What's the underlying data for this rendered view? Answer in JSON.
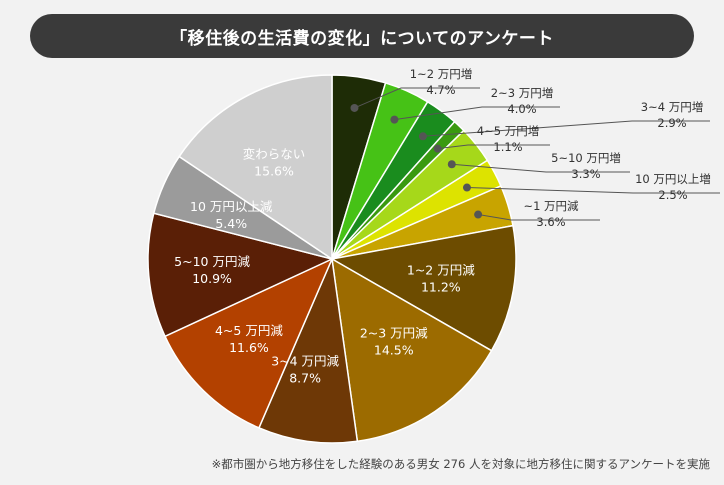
{
  "chart_data": {
    "type": "pie",
    "title": "「移住後の生活費の変化」についてのアンケート",
    "footnote": "※都市圏から地方移住をした経験のある男女 276 人を対象に地方移住に関するアンケートを実施",
    "slices": [
      {
        "label": "1~2 万円増",
        "value": 4.7,
        "display": "4.7%",
        "color": "#1e2c06",
        "label_pos": "outside"
      },
      {
        "label": "2~3 万円増",
        "value": 4.0,
        "display": "4.0%",
        "color": "#46c216",
        "label_pos": "outside"
      },
      {
        "label": "3~4 万円増",
        "value": 2.9,
        "display": "2.9%",
        "color": "#1a8c1e",
        "label_pos": "outside"
      },
      {
        "label": "4~5 万円増",
        "value": 1.1,
        "display": "1.1%",
        "color": "#3a9a10",
        "label_pos": "outside"
      },
      {
        "label": "5~10 万円増",
        "value": 3.3,
        "display": "3.3%",
        "color": "#a6d81a",
        "label_pos": "outside"
      },
      {
        "label": "10 万円以上増",
        "value": 2.5,
        "display": "2.5%",
        "color": "#dde300",
        "label_pos": "outside"
      },
      {
        "label": "~1 万円減",
        "value": 3.6,
        "display": "3.6%",
        "color": "#c8a400",
        "label_pos": "outside"
      },
      {
        "label": "1~2 万円減",
        "value": 11.2,
        "display": "11.2%",
        "color": "#6d4c00",
        "label_pos": "inside"
      },
      {
        "label": "2~3 万円減",
        "value": 14.5,
        "display": "14.5%",
        "color": "#9c6b00",
        "label_pos": "inside"
      },
      {
        "label": "3~4 万円減",
        "value": 8.7,
        "display": "8.7%",
        "color": "#6e3806",
        "label_pos": "inside"
      },
      {
        "label": "4~5 万円減",
        "value": 11.6,
        "display": "11.6%",
        "color": "#b34100",
        "label_pos": "inside"
      },
      {
        "label": "5~10 万円減",
        "value": 10.9,
        "display": "10.9%",
        "color": "#5a1f06",
        "label_pos": "inside"
      },
      {
        "label": "10 万円以上減",
        "value": 5.4,
        "display": "5.4%",
        "color": "#9b9b9b",
        "label_pos": "inside"
      },
      {
        "label": "変わらない",
        "value": 15.6,
        "display": "15.6%",
        "color": "#cfcfcf",
        "label_pos": "inside"
      }
    ]
  }
}
